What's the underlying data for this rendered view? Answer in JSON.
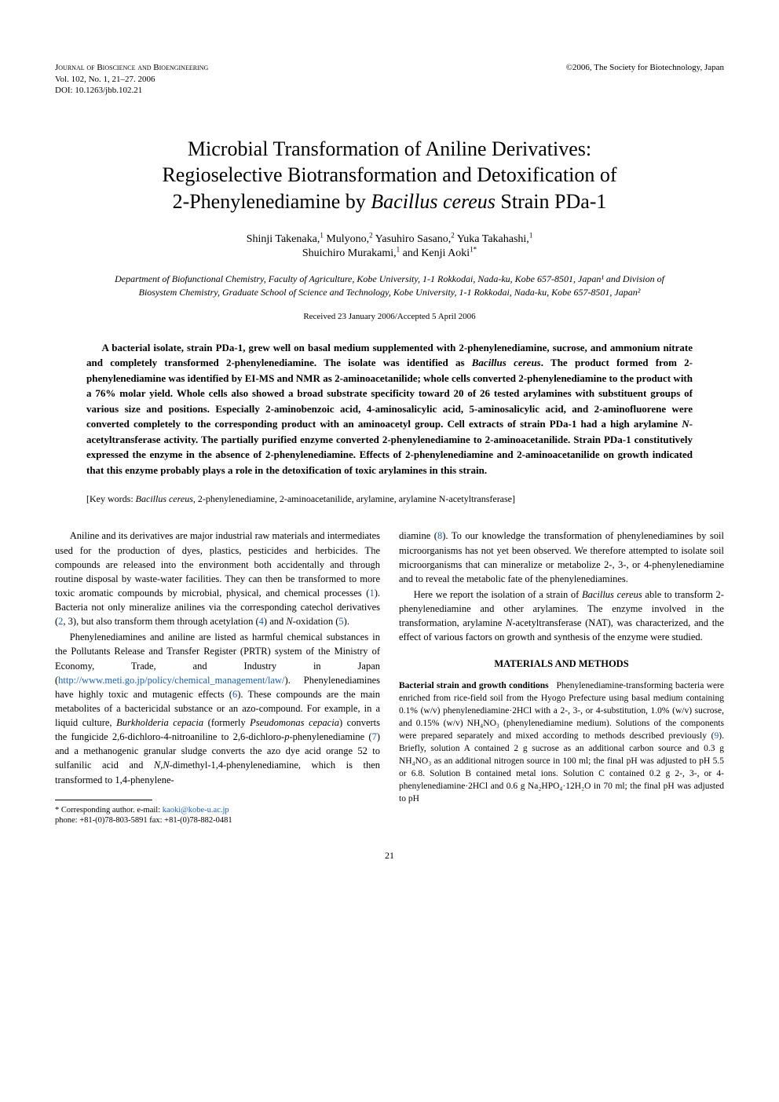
{
  "header": {
    "journal_name": "Journal of Bioscience and Bioengineering",
    "copyright": "©2006, The Society for Biotechnology, Japan",
    "volume_info": "Vol. 102, No. 1, 21–27. 2006",
    "doi": "DOI: 10.1263/jbb.102.21"
  },
  "title": {
    "line1": "Microbial Transformation of Aniline Derivatives:",
    "line2": "Regioselective Biotransformation and Detoxification of",
    "line3_a": "2-Phenylenediamine by ",
    "line3_italic": "Bacillus cereus",
    "line3_b": " Strain PDa-1"
  },
  "authors": {
    "line1_parts": [
      {
        "text": "Shinji Takenaka,",
        "sup": "1"
      },
      {
        "text": " Mulyono,",
        "sup": "2"
      },
      {
        "text": " Yasuhiro Sasano,",
        "sup": "2"
      },
      {
        "text": " Yuka Takahashi,",
        "sup": "1"
      }
    ],
    "line2_parts": [
      {
        "text": "Shuichiro Murakami,",
        "sup": "1"
      },
      {
        "text": " and Kenji Aoki",
        "sup": "1*"
      }
    ]
  },
  "affiliations": "Department of Biofunctional Chemistry, Faculty of Agriculture, Kobe University, 1-1 Rokkodai, Nada-ku, Kobe 657-8501, Japan¹ and Division of Biosystem Chemistry, Graduate School of Science and Technology, Kobe University, 1-1 Rokkodai, Nada-ku, Kobe 657-8501, Japan²",
  "dates": "Received 23 January 2006/Accepted 5 April 2006",
  "abstract": {
    "text_a": "A bacterial isolate, strain PDa-1, grew well on basal medium supplemented with 2-phenylenediamine, sucrose, and ammonium nitrate and completely transformed 2-phenylenediamine. The isolate was identified as ",
    "italic1": "Bacillus cereus",
    "text_b": ". The product formed from 2-phenylenediamine was identified by EI-MS and NMR as 2-aminoacetanilide; whole cells converted 2-phenylenediamine to the product with a 76% molar yield. Whole cells also showed a broad substrate specificity toward 20 of 26 tested arylamines with substituent groups of various size and positions. Especially 2-aminobenzoic acid, 4-aminosalicylic acid, 5-aminosalicylic acid, and 2-aminofluorene were converted completely to the corresponding product with an aminoacetyl group. Cell extracts of strain PDa-1 had a high arylamine ",
    "italic2": "N",
    "text_c": "-acetyltransferase activity. The partially purified enzyme converted 2-phenylenediamine to 2-aminoacetanilide. Strain PDa-1 constitutively expressed the enzyme in the absence of 2-phenylenediamine. Effects of 2-phenylenediamine and 2-aminoacetanilide on growth indicated that this enzyme probably plays a role in the detoxification of toxic arylamines in this strain."
  },
  "keywords": {
    "label": "[Key words: ",
    "italic": "Bacillus cereus",
    "rest": ", 2-phenylenediamine, 2-aminoacetanilide, arylamine, arylamine N-acetyltransferase]"
  },
  "body": {
    "col1": {
      "p1_a": "Aniline and its derivatives are major industrial raw materials and intermediates used for the production of dyes, plastics, pesticides and herbicides. The compounds are released into the environment both accidentally and through routine disposal by waste-water facilities. They can then be transformed to more toxic aromatic compounds by microbial, physical, and chemical processes (",
      "p1_ref1": "1",
      "p1_b": "). Bacteria not only mineralize anilines via the corresponding catechol derivatives (",
      "p1_ref2": "2",
      "p1_c": ", 3), but also transform them through acetylation (",
      "p1_ref4": "4",
      "p1_d": ") and ",
      "p1_italic": "N",
      "p1_e": "-oxidation (",
      "p1_ref5": "5",
      "p1_f": ").",
      "p2_a": "Phenylenediamines and aniline are listed as harmful chemical substances in the Pollutants Release and Transfer Register (PRTR) system of the Ministry of Economy, Trade, and Industry in Japan (",
      "p2_link": "http://www.meti.go.jp/policy/chemical_management/law/",
      "p2_b": "). Phenylenediamines have highly toxic and mutagenic effects (",
      "p2_ref6": "6",
      "p2_c": "). These compounds are the main metabolites of a bactericidal substance or an azo-compound. For example, in a liquid culture, ",
      "p2_italic1": "Burkholderia cepacia",
      "p2_d": " (formerly ",
      "p2_italic2": "Pseudomonas cepacia",
      "p2_e": ") converts the fungicide 2,6-dichloro-4-nitroaniline to 2,6-dichloro-",
      "p2_italic3": "p",
      "p2_f": "-phenylenediamine (",
      "p2_ref7": "7",
      "p2_g": ") and a methanogenic granular sludge converts the azo dye acid orange 52 to sulfanilic acid and ",
      "p2_italic4": "N,N",
      "p2_h": "-dimethyl-1,4-phenylenediamine, which is then transformed to 1,4-phenylene-"
    },
    "col2": {
      "p1_a": "diamine (",
      "p1_ref8": "8",
      "p1_b": "). To our knowledge the transformation of phenylenediamines by soil microorganisms has not yet been observed. We therefore attempted to isolate soil microorganisms that can mineralize or metabolize 2-, 3-, or 4-phenylenediamine and to reveal the metabolic fate of the phenylenediamines.",
      "p2_a": "Here we report the isolation of a strain of ",
      "p2_italic1": "Bacillus cereus",
      "p2_b": " able to transform 2-phenylenediamine and other arylamines. The enzyme involved in the transformation, arylamine ",
      "p2_italic2": "N",
      "p2_c": "-acetyltransferase (NAT), was characterized, and the effect of various factors on growth and synthesis of the enzyme were studied.",
      "section_heading": "MATERIALS AND METHODS",
      "sub1_heading": "Bacterial strain and growth conditions",
      "sub1_text_a": "Phenylenediamine-transforming bacteria were enriched from rice-field soil from the Hyogo Prefecture using basal medium containing 0.1% (w/v) phenylenediamine·2HCl with a 2-, 3-, or 4-substitution, 1.0% (w/v) sucrose, and 0.15% (w/v) NH₄NO₃ (phenylenediamine medium). Solutions of the components were prepared separately and mixed according to methods described previously (",
      "sub1_ref9": "9",
      "sub1_text_b": "). Briefly, solution A contained 2 g sucrose as an additional carbon source and 0.3 g NH₄NO₃ as an additional nitrogen source in 100 ml; the final pH was adjusted to pH 5.5 or 6.8. Solution B contained metal ions. Solution C contained 0.2 g 2-, 3-, or 4-phenylenediamine·2HCl and 0.6 g Na₂HPO₄·12H₂O in 70 ml; the final pH was adjusted to pH"
    }
  },
  "footnote": {
    "line1_a": "* Corresponding author. e-mail: ",
    "line1_email": "kaoki@kobe-u.ac.jp",
    "line2": "phone: +81-(0)78-803-5891  fax: +81-(0)78-882-0481"
  },
  "page_number": "21"
}
